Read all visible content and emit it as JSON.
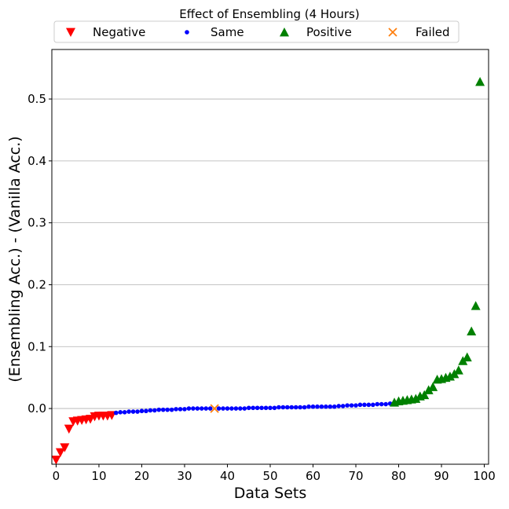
{
  "chart_data": {
    "type": "scatter",
    "title": "Effect of Ensembling (4 Hours)",
    "xlabel": "Data Sets",
    "ylabel": "(Ensembling Acc.) - (Vanilla Acc.)",
    "xlim": [
      -1,
      101
    ],
    "ylim": [
      -0.09,
      0.58
    ],
    "xticks": [
      0,
      10,
      20,
      30,
      40,
      50,
      60,
      70,
      80,
      90,
      100
    ],
    "yticks": [
      0.0,
      0.1,
      0.2,
      0.3,
      0.4,
      0.5
    ],
    "ytick_labels": [
      "0.0",
      "0.1",
      "0.2",
      "0.3",
      "0.4",
      "0.5"
    ],
    "grid": "y-axis only",
    "legend_position": "top-center, horizontal",
    "legend": [
      "Negative",
      "Same",
      "Positive",
      "Failed"
    ],
    "series": [
      {
        "name": "Negative",
        "marker": "triangle-down",
        "color": "#ff0000",
        "x": [
          0,
          1,
          2,
          3,
          4,
          5,
          6,
          7,
          8,
          9,
          10,
          11,
          12,
          13
        ],
        "y": [
          -0.083,
          -0.071,
          -0.063,
          -0.033,
          -0.021,
          -0.02,
          -0.019,
          -0.018,
          -0.017,
          -0.013,
          -0.012,
          -0.012,
          -0.012,
          -0.011
        ]
      },
      {
        "name": "Same",
        "marker": "circle",
        "color": "#0000ff",
        "x": [
          14,
          15,
          16,
          17,
          18,
          19,
          20,
          21,
          22,
          23,
          24,
          25,
          26,
          27,
          28,
          29,
          30,
          31,
          32,
          33,
          34,
          35,
          36,
          38,
          39,
          40,
          41,
          42,
          43,
          44,
          45,
          46,
          47,
          48,
          49,
          50,
          51,
          52,
          53,
          54,
          55,
          56,
          57,
          58,
          59,
          60,
          61,
          62,
          63,
          64,
          65,
          66,
          67,
          68,
          69,
          70,
          71,
          72,
          73,
          74,
          75,
          76,
          77,
          78
        ],
        "y": [
          -0.007,
          -0.006,
          -0.006,
          -0.005,
          -0.005,
          -0.005,
          -0.004,
          -0.004,
          -0.003,
          -0.003,
          -0.002,
          -0.002,
          -0.002,
          -0.002,
          -0.001,
          -0.001,
          -0.001,
          0.0,
          0.0,
          0.0,
          0.0,
          0.0,
          0.0,
          0.0,
          0.0,
          0.0,
          0.0,
          0.0,
          0.0,
          0.0,
          0.001,
          0.001,
          0.001,
          0.001,
          0.001,
          0.001,
          0.001,
          0.002,
          0.002,
          0.002,
          0.002,
          0.002,
          0.002,
          0.002,
          0.003,
          0.003,
          0.003,
          0.003,
          0.003,
          0.003,
          0.003,
          0.004,
          0.004,
          0.005,
          0.005,
          0.005,
          0.006,
          0.006,
          0.006,
          0.006,
          0.007,
          0.007,
          0.007,
          0.008
        ]
      },
      {
        "name": "Positive",
        "marker": "triangle-up",
        "color": "#008000",
        "x": [
          79,
          80,
          81,
          82,
          83,
          84,
          85,
          86,
          87,
          88,
          89,
          90,
          91,
          92,
          93,
          94,
          95,
          96,
          97,
          98,
          99
        ],
        "y": [
          0.01,
          0.012,
          0.013,
          0.014,
          0.015,
          0.016,
          0.02,
          0.022,
          0.03,
          0.035,
          0.047,
          0.048,
          0.05,
          0.052,
          0.056,
          0.062,
          0.077,
          0.083,
          0.125,
          0.166,
          0.528
        ]
      },
      {
        "name": "Failed",
        "marker": "x",
        "color": "#ff7f0e",
        "x": [
          37
        ],
        "y": [
          0.0
        ]
      }
    ]
  }
}
